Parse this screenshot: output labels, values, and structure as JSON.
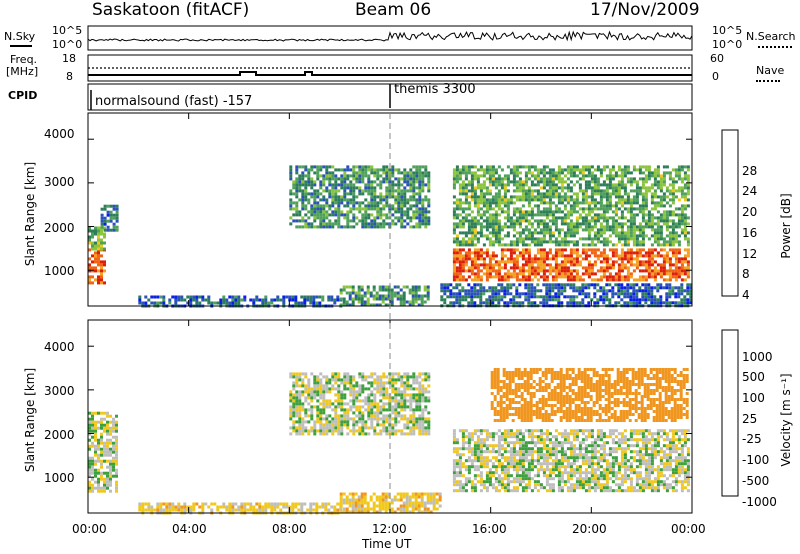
{
  "header": {
    "station": "Saskatoon (fitACF)",
    "beam": "Beam 06",
    "date": "17/Nov/2009"
  },
  "strip": {
    "nsky_label": "N.Sky",
    "nsearch_label": "N.Search",
    "nsky_ticks": [
      "10^5",
      "10^0"
    ],
    "freq_label_1": "Freq.",
    "freq_label_2": "[MHz]",
    "freq_ticks": [
      "18",
      "8"
    ],
    "nave_label": "Nave",
    "nave_ticks": [
      "60",
      "0"
    ],
    "cpid_label": "CPID",
    "cpid_1": "normalsound (fast) -157",
    "cpid_2": "themis 3300"
  },
  "x_axis": {
    "label": "Time UT",
    "ticks": [
      "00:00",
      "04:00",
      "08:00",
      "12:00",
      "16:00",
      "20:00",
      "00:00"
    ]
  },
  "panels": {
    "power_ylabel": "Slant Range [km]",
    "velocity_ylabel": "Slant Range [km]",
    "power_cbar_label": "Power [dB]",
    "velocity_cbar_label": "Velocity [m s⁻¹]",
    "y_ticks": [
      "4000",
      "3000",
      "2000",
      "1000"
    ]
  },
  "colors": {
    "power_scale": [
      "#0a1ee6",
      "#2a52b8",
      "#2e7d5a",
      "#4fa05a",
      "#8cc43c",
      "#f0c81e",
      "#f5a01e",
      "#f06414",
      "#dc1e0a"
    ],
    "velocity_scale": [
      "#1e3cd2",
      "#3c8cb4",
      "#3ca03c",
      "#78c83c",
      "#bebebe",
      "#f0c81e",
      "#f0961e",
      "#f06414",
      "#e60a0a"
    ]
  },
  "chart_data": [
    {
      "type": "heatmap",
      "title": "Power",
      "xlabel": "Time UT",
      "ylabel": "Slant Range [km]",
      "xlim": [
        "00:00",
        "24:00"
      ],
      "ylim": [
        180,
        4600
      ],
      "colorbar": {
        "label": "Power [dB]",
        "ticks": [
          4,
          8,
          12,
          16,
          20,
          24,
          28
        ],
        "range": [
          0,
          30
        ]
      },
      "regions": [
        {
          "t": [
            0.0,
            0.6
          ],
          "range": [
            700,
            1500
          ],
          "value": 26
        },
        {
          "t": [
            0.0,
            0.6
          ],
          "range": [
            1500,
            2000
          ],
          "value": 14
        },
        {
          "t": [
            0.5,
            1.1
          ],
          "range": [
            1900,
            2500
          ],
          "value": 8
        },
        {
          "t": [
            2.0,
            10.0
          ],
          "range": [
            200,
            420
          ],
          "value": 6
        },
        {
          "t": [
            10.0,
            13.5
          ],
          "range": [
            200,
            650
          ],
          "value": 10
        },
        {
          "t": [
            8.0,
            13.5
          ],
          "range": [
            2000,
            3400
          ],
          "value": 10
        },
        {
          "t": [
            14.5,
            23.8
          ],
          "range": [
            1550,
            3400
          ],
          "value": 12
        },
        {
          "t": [
            14.5,
            23.8
          ],
          "range": [
            750,
            1500
          ],
          "value": 25
        },
        {
          "t": [
            14.0,
            24.0
          ],
          "range": [
            200,
            700
          ],
          "value": 6
        }
      ]
    },
    {
      "type": "heatmap",
      "title": "Velocity",
      "xlabel": "Time UT",
      "ylabel": "Slant Range [km]",
      "xlim": [
        "00:00",
        "24:00"
      ],
      "ylim": [
        180,
        4600
      ],
      "colorbar": {
        "label": "Velocity [m s⁻¹]",
        "ticks": [
          1000,
          500,
          100,
          25,
          -25,
          -100,
          -500,
          -1000
        ],
        "range": [
          -1000,
          1000
        ]
      },
      "regions": [
        {
          "t": [
            0.0,
            1.1
          ],
          "range": [
            700,
            2500
          ],
          "value": 0
        },
        {
          "t": [
            2.0,
            10.0
          ],
          "range": [
            200,
            420
          ],
          "value": -50
        },
        {
          "t": [
            10.0,
            14.0
          ],
          "range": [
            200,
            650
          ],
          "value": -60
        },
        {
          "t": [
            8.0,
            13.5
          ],
          "range": [
            2000,
            3400
          ],
          "value": 0
        },
        {
          "t": [
            14.5,
            23.8
          ],
          "range": [
            700,
            2100
          ],
          "value": 0
        },
        {
          "t": [
            16.0,
            23.8
          ],
          "range": [
            2300,
            3500
          ],
          "value": -400
        }
      ]
    }
  ]
}
